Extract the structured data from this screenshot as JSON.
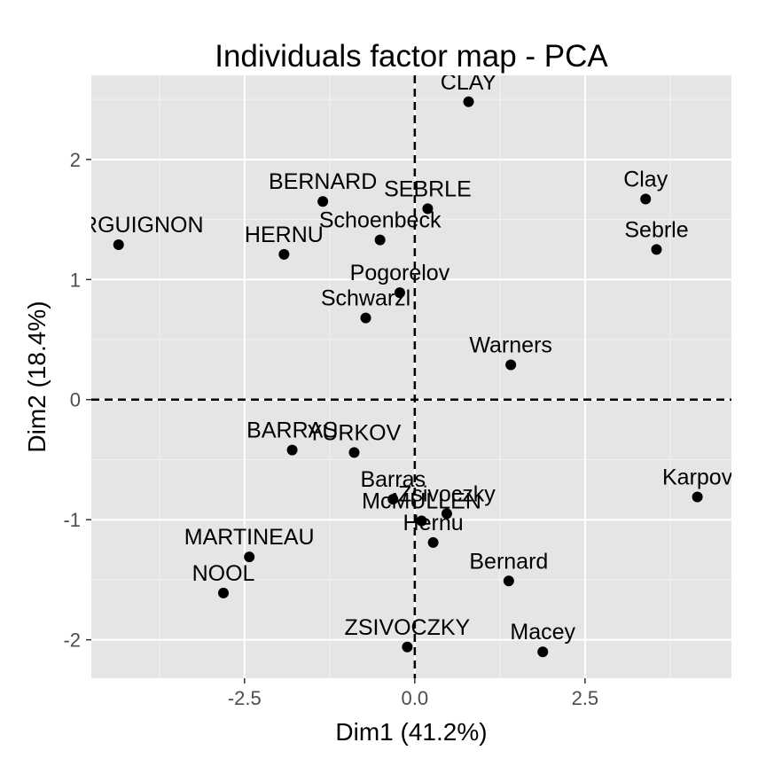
{
  "chart_data": {
    "type": "scatter",
    "title": "Individuals factor map - PCA",
    "xlabel": "Dim1 (41.2%)",
    "ylabel": "Dim2 (18.4%)",
    "xlim": [
      -4.75,
      4.65
    ],
    "ylim": [
      -2.32,
      2.7
    ],
    "x_ticks": [
      -2.5,
      0,
      2.5
    ],
    "x_tick_labels": [
      "-2.5",
      "0.0",
      "2.5"
    ],
    "y_ticks": [
      -2,
      -1,
      0,
      1,
      2
    ],
    "y_tick_labels": [
      "-2",
      "-1",
      "0",
      "1",
      "2"
    ],
    "reference_lines": {
      "x": 0,
      "y": 0,
      "style": "dashed"
    },
    "grid": true,
    "colors": {
      "panel": "#e5e5e5",
      "grid_major": "#ffffff",
      "grid_minor": "#f2f2f2",
      "point": "#000000",
      "tick_text": "#4d4d4d"
    },
    "points": [
      {
        "label": "CLAY",
        "x": 0.79,
        "y": 2.48
      },
      {
        "label": "BERNARD",
        "x": -1.35,
        "y": 1.65
      },
      {
        "label": "SEBRLE",
        "x": 0.19,
        "y": 1.59
      },
      {
        "label": "Schoenbeck",
        "x": -0.51,
        "y": 1.33
      },
      {
        "label": "BOURGUIGNON",
        "x": -4.35,
        "y": 1.29
      },
      {
        "label": "HERNU",
        "x": -1.92,
        "y": 1.21
      },
      {
        "label": "Pogorelov",
        "x": -0.22,
        "y": 0.89
      },
      {
        "label": "Schwarzl",
        "x": -0.72,
        "y": 0.68
      },
      {
        "label": "Clay",
        "x": 3.39,
        "y": 1.67
      },
      {
        "label": "Sebrle",
        "x": 3.55,
        "y": 1.25
      },
      {
        "label": "Warners",
        "x": 1.41,
        "y": 0.29
      },
      {
        "label": "BARRAS",
        "x": -1.8,
        "y": -0.42
      },
      {
        "label": "YURKOV",
        "x": -0.89,
        "y": -0.44
      },
      {
        "label": "Barras",
        "x": -0.32,
        "y": -0.83
      },
      {
        "label": "Zsivoczky",
        "x": 0.47,
        "y": -0.95
      },
      {
        "label": "McMULLEN",
        "x": 0.1,
        "y": -1.01
      },
      {
        "label": "Hernu",
        "x": 0.27,
        "y": -1.19
      },
      {
        "label": "Karpov",
        "x": 4.15,
        "y": -0.81
      },
      {
        "label": "MARTINEAU",
        "x": -2.43,
        "y": -1.31
      },
      {
        "label": "NOOL",
        "x": -2.81,
        "y": -1.61
      },
      {
        "label": "Bernard",
        "x": 1.38,
        "y": -1.51
      },
      {
        "label": "ZSIVOCZKY",
        "x": -0.11,
        "y": -2.06
      },
      {
        "label": "Macey",
        "x": 1.88,
        "y": -2.1
      }
    ]
  }
}
